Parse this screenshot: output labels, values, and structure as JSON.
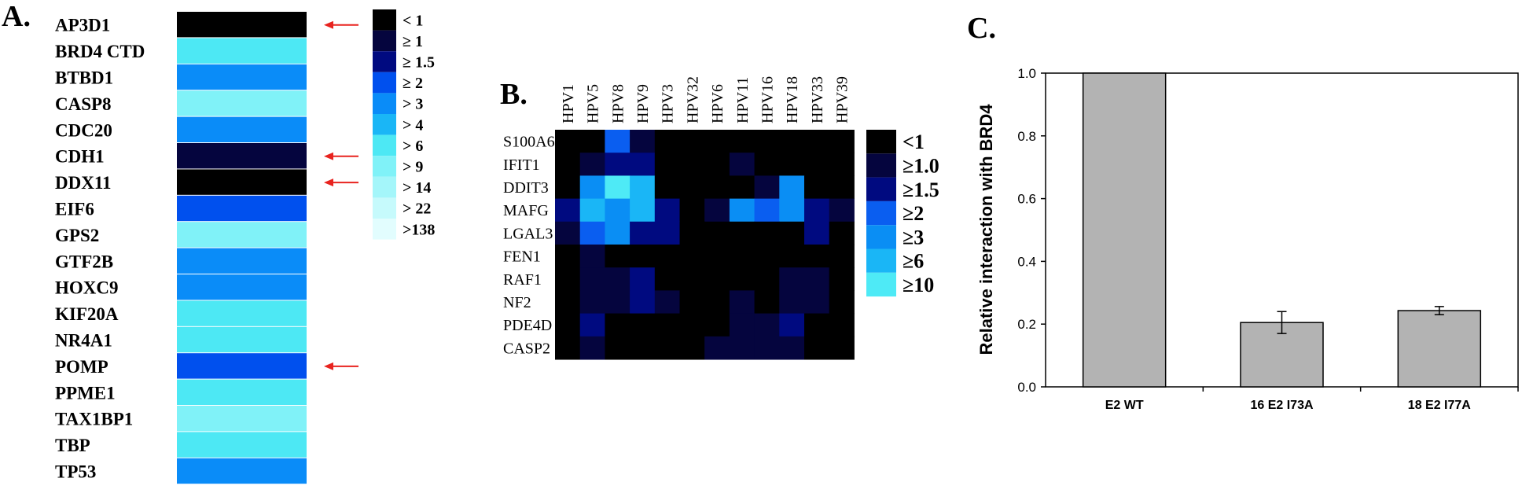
{
  "chart_data": [
    {
      "panel": "A.",
      "type": "heatmap",
      "rows": [
        "AP3D1",
        "BRD4 CTD",
        "BTBD1",
        "CASP8",
        "CDC20",
        "CDH1",
        "DDX11",
        "EIF6",
        "GPS2",
        "GTF2B",
        "HOXC9",
        "KIF20A",
        "NR4A1",
        "POMP",
        "PPME1",
        "TAX1BP1",
        "TBP",
        "TP53"
      ],
      "levels": [
        0,
        6,
        4,
        7,
        4,
        1,
        0,
        3,
        7,
        4,
        4,
        6,
        6,
        3,
        6,
        7,
        6,
        4
      ],
      "highlighted": [
        "AP3D1",
        "CDH1",
        "DDX11",
        "POMP"
      ],
      "arrow_color": "#e8231f",
      "legend": [
        "< 1",
        "≥ 1",
        "≥ 1.5",
        "≥ 2",
        "> 3",
        "> 4",
        "> 6",
        "> 9",
        "> 14",
        "> 22",
        ">138"
      ],
      "legend_colors": [
        "#000000",
        "#05053e",
        "#000a80",
        "#0050ee",
        "#0a8cf8",
        "#1ab6f6",
        "#4de8f4",
        "#80f2f8",
        "#a4f6fa",
        "#c6fafc",
        "#e2fdfe"
      ]
    },
    {
      "panel": "B.",
      "type": "heatmap",
      "columns": [
        "HPV1",
        "HPV5",
        "HPV8",
        "HPV9",
        "HPV3",
        "HPV32",
        "HPV6",
        "HPV11",
        "HPV16",
        "HPV18",
        "HPV33",
        "HPV39"
      ],
      "rows": [
        "S100A6",
        "IFIT1",
        "DDIT3",
        "MAFG",
        "LGAL3",
        "FEN1",
        "RAF1",
        "NF2",
        "PDE4D",
        "CASP2"
      ],
      "matrix": [
        [
          0,
          0,
          3,
          1,
          0,
          0,
          0,
          0,
          0,
          0,
          0,
          0
        ],
        [
          0,
          1,
          2,
          2,
          0,
          0,
          0,
          1,
          0,
          0,
          0,
          0
        ],
        [
          0,
          4,
          6,
          5,
          0,
          0,
          0,
          0,
          1,
          4,
          0,
          0
        ],
        [
          2,
          5,
          4,
          5,
          2,
          0,
          1,
          4,
          3,
          4,
          2,
          1
        ],
        [
          1,
          3,
          4,
          2,
          2,
          0,
          0,
          0,
          0,
          0,
          2,
          0
        ],
        [
          0,
          1,
          0,
          0,
          0,
          0,
          0,
          0,
          0,
          0,
          0,
          0
        ],
        [
          0,
          1,
          1,
          2,
          0,
          0,
          0,
          0,
          0,
          1,
          1,
          0
        ],
        [
          0,
          1,
          1,
          2,
          1,
          0,
          0,
          1,
          0,
          1,
          1,
          0
        ],
        [
          0,
          2,
          0,
          0,
          0,
          0,
          0,
          1,
          1,
          2,
          0,
          0
        ],
        [
          0,
          1,
          0,
          0,
          0,
          0,
          1,
          1,
          1,
          1,
          0,
          0
        ]
      ],
      "legend": [
        "<1",
        "≥1.0",
        "≥1.5",
        "≥2",
        "≥3",
        "≥6",
        "≥10"
      ],
      "legend_colors": [
        "#000000",
        "#05053e",
        "#000a80",
        "#0a5ef0",
        "#0a8ef4",
        "#1ab6f6",
        "#4eeaf6"
      ]
    },
    {
      "panel": "C.",
      "type": "bar",
      "categories": [
        "E2 WT",
        "16 E2 I73A",
        "18 E2 I77A"
      ],
      "values": [
        1.0,
        0.205,
        0.243
      ],
      "errors": [
        0,
        0.035,
        0.013
      ],
      "ylabel": "Relative interaction with BRD4",
      "xlabel": "",
      "ylim": [
        0,
        1.0
      ],
      "yticks": [
        "0.0",
        "0.2",
        "0.4",
        "0.6",
        "0.8",
        "1.0"
      ],
      "bar_color": "#b3b3b3",
      "grid": false
    }
  ]
}
